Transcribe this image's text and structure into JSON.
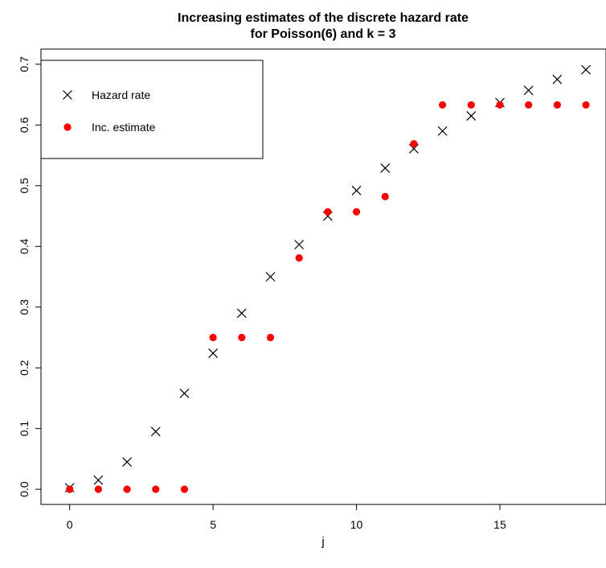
{
  "chart_data": {
    "type": "scatter",
    "title": "Increasing estimates of the discrete hazard rate",
    "subtitle": "for Poisson(6) and k = 3",
    "xlabel": "j",
    "ylabel": "",
    "xlim": [
      -1,
      18.7
    ],
    "ylim": [
      -0.025,
      0.725
    ],
    "xticks": [
      0,
      5,
      10,
      15
    ],
    "yticks": [
      0.0,
      0.1,
      0.2,
      0.3,
      0.4,
      0.5,
      0.6,
      0.7
    ],
    "ytick_labels": [
      "0.0",
      "0.1",
      "0.2",
      "0.3",
      "0.4",
      "0.5",
      "0.6",
      "0.7"
    ],
    "grid": false,
    "legend_position": "top-left",
    "series": [
      {
        "name": "Hazard rate",
        "marker": "x",
        "color": "#000000",
        "x": [
          0,
          1,
          2,
          3,
          4,
          5,
          6,
          7,
          8,
          9,
          10,
          11,
          12,
          13,
          14,
          15,
          16,
          17,
          18
        ],
        "y": [
          0.0025,
          0.015,
          0.045,
          0.095,
          0.158,
          0.224,
          0.29,
          0.35,
          0.403,
          0.45,
          0.492,
          0.529,
          0.561,
          0.59,
          0.615,
          0.637,
          0.657,
          0.675,
          0.691
        ]
      },
      {
        "name": "Inc. estimate",
        "marker": "filled-circle",
        "color": "#ff0000",
        "x": [
          0,
          1,
          2,
          3,
          4,
          5,
          6,
          7,
          8,
          9,
          10,
          11,
          12,
          13,
          14,
          15,
          16,
          17,
          18
        ],
        "y": [
          0.0,
          0.0,
          0.0,
          0.0,
          0.0,
          0.25,
          0.25,
          0.25,
          0.381,
          0.457,
          0.457,
          0.482,
          0.569,
          0.633,
          0.633,
          0.633,
          0.633,
          0.633,
          0.633
        ]
      }
    ]
  }
}
